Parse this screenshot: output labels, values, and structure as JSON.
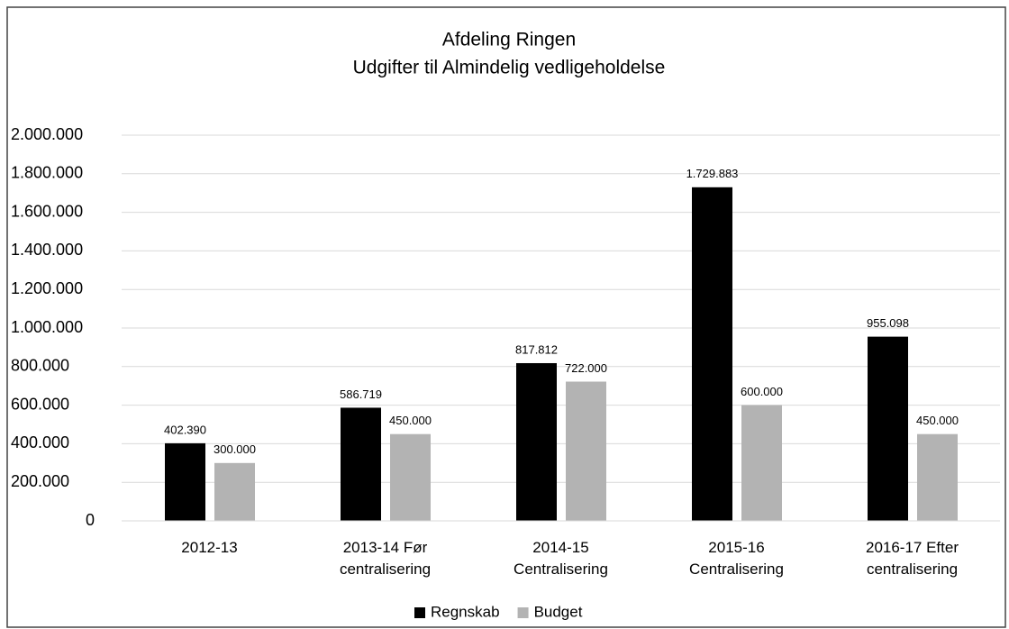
{
  "chart_data": {
    "type": "bar",
    "title": "Afdeling Ringen",
    "subtitle": "Udgifter til Almindelig vedligeholdelse",
    "categories": [
      "2012-13",
      "2013-14 Før centralisering",
      "2014-15 Centralisering",
      "2015-16 Centralisering",
      "2016-17 Efter centralisering"
    ],
    "series": [
      {
        "name": "Regnskab",
        "color": "#000000",
        "values": [
          402390,
          586719,
          817812,
          1729883,
          955098
        ],
        "value_labels": [
          "402.390",
          "586.719",
          "817.812",
          "1.729.883",
          "955.098"
        ]
      },
      {
        "name": "Budget",
        "color": "#b3b3b3",
        "values": [
          300000,
          450000,
          722000,
          600000,
          450000
        ],
        "value_labels": [
          "300.000",
          "450.000",
          "722.000",
          "600.000",
          "450.000"
        ]
      }
    ],
    "ylim": [
      0,
      2000000
    ],
    "yticks": [
      0,
      {
        "value": 200000,
        "label": "200.000"
      },
      {
        "value": 400000,
        "label": "400.000"
      },
      {
        "value": 600000,
        "label": "600.000"
      },
      {
        "value": 800000,
        "label": "800.000"
      },
      {
        "value": 1000000,
        "label": "1.000.000"
      },
      {
        "value": 1200000,
        "label": "1.200.000"
      },
      {
        "value": 1400000,
        "label": "1.400.000"
      },
      {
        "value": 1600000,
        "label": "1.600.000"
      },
      {
        "value": 1800000,
        "label": "1.800.000"
      },
      {
        "value": 2000000,
        "label": "2.000.000"
      }
    ],
    "grid": true,
    "legend": "bottom"
  }
}
